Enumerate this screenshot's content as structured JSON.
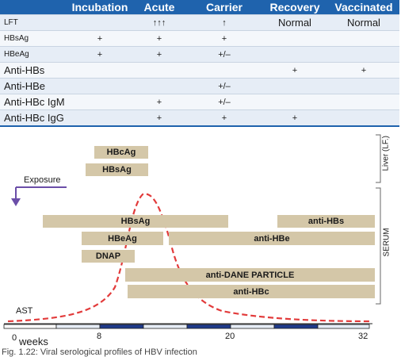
{
  "table": {
    "headers": [
      "",
      "Incubation",
      "Acute",
      "Carrier",
      "Recovery",
      "Vaccinated"
    ],
    "rows": [
      {
        "label": "LFT",
        "cells": [
          "",
          "↑↑↑",
          "↑",
          "Normal",
          "Normal"
        ]
      },
      {
        "label": "HBsAg",
        "cells": [
          "+",
          "+",
          "+",
          "",
          ""
        ]
      },
      {
        "label": "HBeAg",
        "cells": [
          "+",
          "+",
          "+/–",
          "",
          ""
        ]
      },
      {
        "label": "Anti-HBs",
        "cells": [
          "",
          "",
          "",
          "+",
          "+"
        ]
      },
      {
        "label": "Anti-HBe",
        "cells": [
          "",
          "",
          "+/–",
          "",
          ""
        ]
      },
      {
        "label": "Anti-HBc IgM",
        "cells": [
          "",
          "+",
          "+/–",
          "",
          ""
        ]
      },
      {
        "label": "Anti-HBc IgG",
        "cells": [
          "",
          "+",
          "+",
          "+",
          ""
        ]
      }
    ]
  },
  "diagram": {
    "liver_label": "Liver (LF.)",
    "serum_label": "SERUM",
    "exposure_label": "Exposure",
    "ast_label": "AST",
    "weeks_label": "weeks",
    "ticks": [
      "0",
      "8",
      "20",
      "32"
    ],
    "liver_bars": [
      "HBcAg",
      "HBsAg"
    ],
    "serum_bars": [
      "HBsAg",
      "anti-HBs",
      "HBeAg",
      "anti-HBe",
      "DNAP",
      "anti-DANE PARTICLE",
      "anti-HBc"
    ],
    "caption": "Fig. 1.22: Viral serological profiles of HBV infection"
  },
  "colors": {
    "header_blue": "#1f63ad",
    "bar_tan": "#d4c7a8",
    "curve_red": "#e23b3b",
    "arrow_purple": "#6b4ea8"
  }
}
